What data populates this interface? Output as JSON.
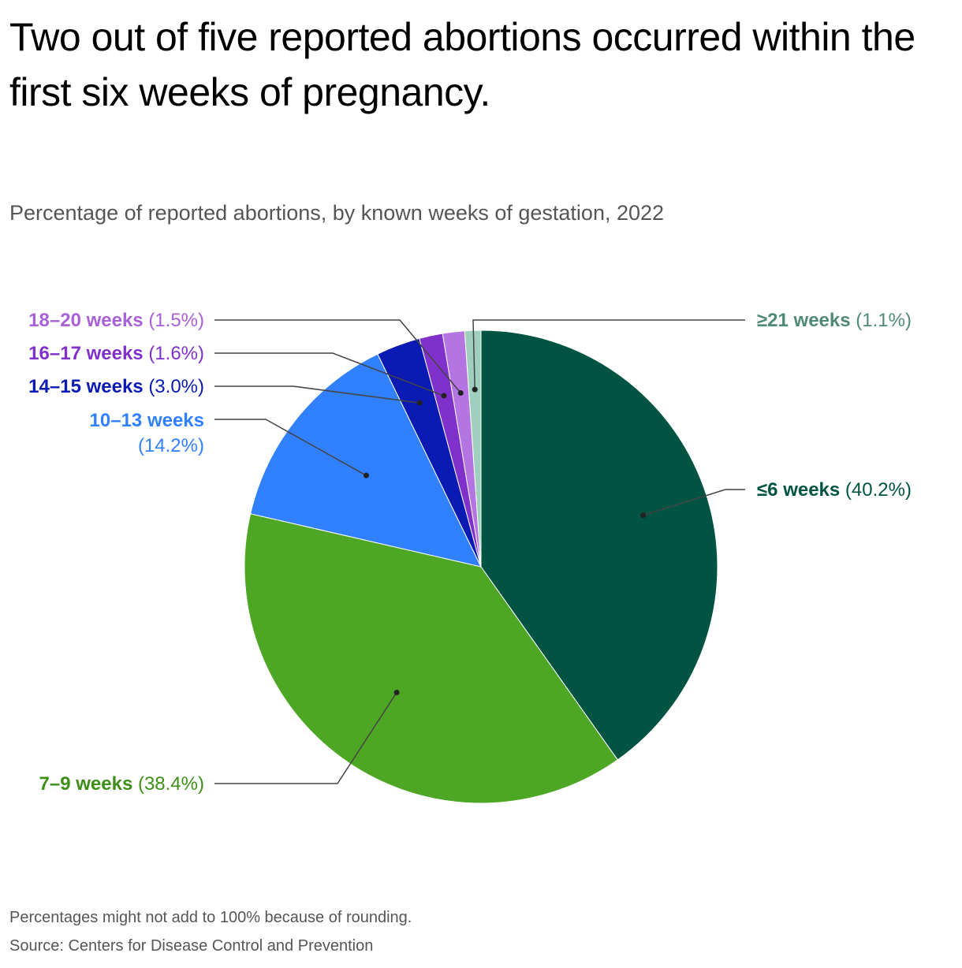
{
  "title": "Two out of five reported abortions occurred within the first six weeks of pregnancy.",
  "subtitle": "Percentage of reported abortions, by known weeks of gestation, 2022",
  "footnote": "Percentages might not add to 100% because of rounding.",
  "source": "Source: Centers for Disease Control and Prevention",
  "chart_data": {
    "type": "pie",
    "title": "Two out of five reported abortions occurred within the first six weeks of pregnancy.",
    "subtitle": "Percentage of reported abortions, by known weeks of gestation, 2022",
    "unit": "%",
    "slices": [
      {
        "label": "≤6 weeks",
        "value_text": "(40.2%)",
        "value": 40.2,
        "color": "#005441"
      },
      {
        "label": "7–9 weeks",
        "value_text": "(38.4%)",
        "value": 38.4,
        "color": "#4da725"
      },
      {
        "label": "10–13 weeks",
        "value_text": "(14.2%)",
        "value": 14.2,
        "color": "#3080ff"
      },
      {
        "label": "14–15 weeks",
        "value_text": "(3.0%)",
        "value": 3.0,
        "color": "#0a1ab3"
      },
      {
        "label": "16–17 weeks",
        "value_text": "(1.6%)",
        "value": 1.6,
        "color": "#8031cc"
      },
      {
        "label": "18–20 weeks",
        "value_text": "(1.5%)",
        "value": 1.5,
        "color": "#b475e3"
      },
      {
        "label": "≥21 weeks",
        "value_text": "(1.1%)",
        "value": 1.1,
        "color": "#9fcfbf"
      }
    ],
    "label_colors": {
      "≤6 weeks": "#005441",
      "7–9 weeks": "#3d8f18",
      "10–13 weeks": "#3080ff",
      "14–15 weeks": "#0a1ab3",
      "16–17 weeks": "#8031cc",
      "18–20 weeks": "#a960d8",
      "≥21 weeks": "#4f8a77"
    }
  }
}
